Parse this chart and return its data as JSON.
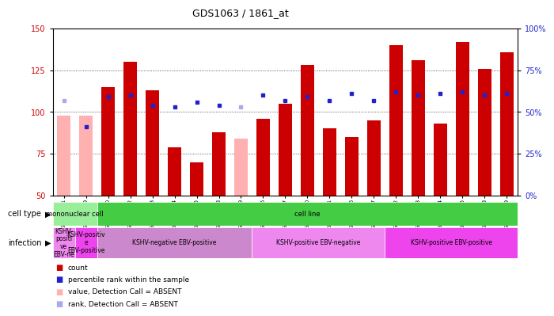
{
  "title": "GDS1063 / 1861_at",
  "samples": [
    "GSM38791",
    "GSM38789",
    "GSM38790",
    "GSM38802",
    "GSM38803",
    "GSM38804",
    "GSM38805",
    "GSM38808",
    "GSM38809",
    "GSM38796",
    "GSM38797",
    "GSM38800",
    "GSM38801",
    "GSM38806",
    "GSM38807",
    "GSM38792",
    "GSM38793",
    "GSM38794",
    "GSM38795",
    "GSM38798",
    "GSM38799"
  ],
  "count_values": [
    98,
    98,
    115,
    130,
    113,
    79,
    70,
    88,
    84,
    96,
    105,
    128,
    90,
    85,
    95,
    140,
    131,
    93,
    142,
    126,
    136
  ],
  "count_absent": [
    true,
    true,
    false,
    false,
    false,
    false,
    false,
    false,
    true,
    false,
    false,
    false,
    false,
    false,
    false,
    false,
    false,
    false,
    false,
    false,
    false
  ],
  "percentile_values": [
    57,
    41,
    59,
    60,
    54,
    53,
    56,
    54,
    53,
    60,
    57,
    59,
    57,
    61,
    57,
    62,
    60,
    61,
    62,
    60,
    61
  ],
  "percentile_absent": [
    true,
    false,
    false,
    false,
    false,
    false,
    false,
    false,
    true,
    false,
    false,
    false,
    false,
    false,
    false,
    false,
    false,
    false,
    false,
    false,
    false
  ],
  "ylim_left": [
    50,
    150
  ],
  "ylim_right": [
    0,
    100
  ],
  "yticks_left": [
    50,
    75,
    100,
    125,
    150
  ],
  "yticks_right": [
    0,
    25,
    50,
    75,
    100
  ],
  "ytick_labels_right": [
    "0%",
    "25%",
    "50%",
    "75%",
    "100%"
  ],
  "bar_color_normal": "#CC0000",
  "bar_color_absent": "#FFB0B0",
  "dot_color_normal": "#2222CC",
  "dot_color_absent": "#AAAAEE",
  "cell_type_groups": [
    {
      "label": "mononuclear cell",
      "start": 0,
      "end": 2,
      "color": "#99EE99"
    },
    {
      "label": "cell line",
      "start": 2,
      "end": 21,
      "color": "#44CC44"
    }
  ],
  "infection_groups": [
    {
      "label": "KSHV-\npositi\nve\nEBV-ne",
      "start": 0,
      "end": 1,
      "color": "#EE88EE"
    },
    {
      "label": "KSHV-positiv\ne\nEBV-positive",
      "start": 1,
      "end": 2,
      "color": "#EE44EE"
    },
    {
      "label": "KSHV-negative EBV-positive",
      "start": 2,
      "end": 9,
      "color": "#CC88CC"
    },
    {
      "label": "KSHV-positive EBV-negative",
      "start": 9,
      "end": 15,
      "color": "#EE88EE"
    },
    {
      "label": "KSHV-positive EBV-positive",
      "start": 15,
      "end": 21,
      "color": "#EE44EE"
    }
  ],
  "legend_items": [
    {
      "label": "count",
      "color": "#CC0000"
    },
    {
      "label": "percentile rank within the sample",
      "color": "#2222CC"
    },
    {
      "label": "value, Detection Call = ABSENT",
      "color": "#FFB0B0"
    },
    {
      "label": "rank, Detection Call = ABSENT",
      "color": "#AAAAEE"
    }
  ]
}
